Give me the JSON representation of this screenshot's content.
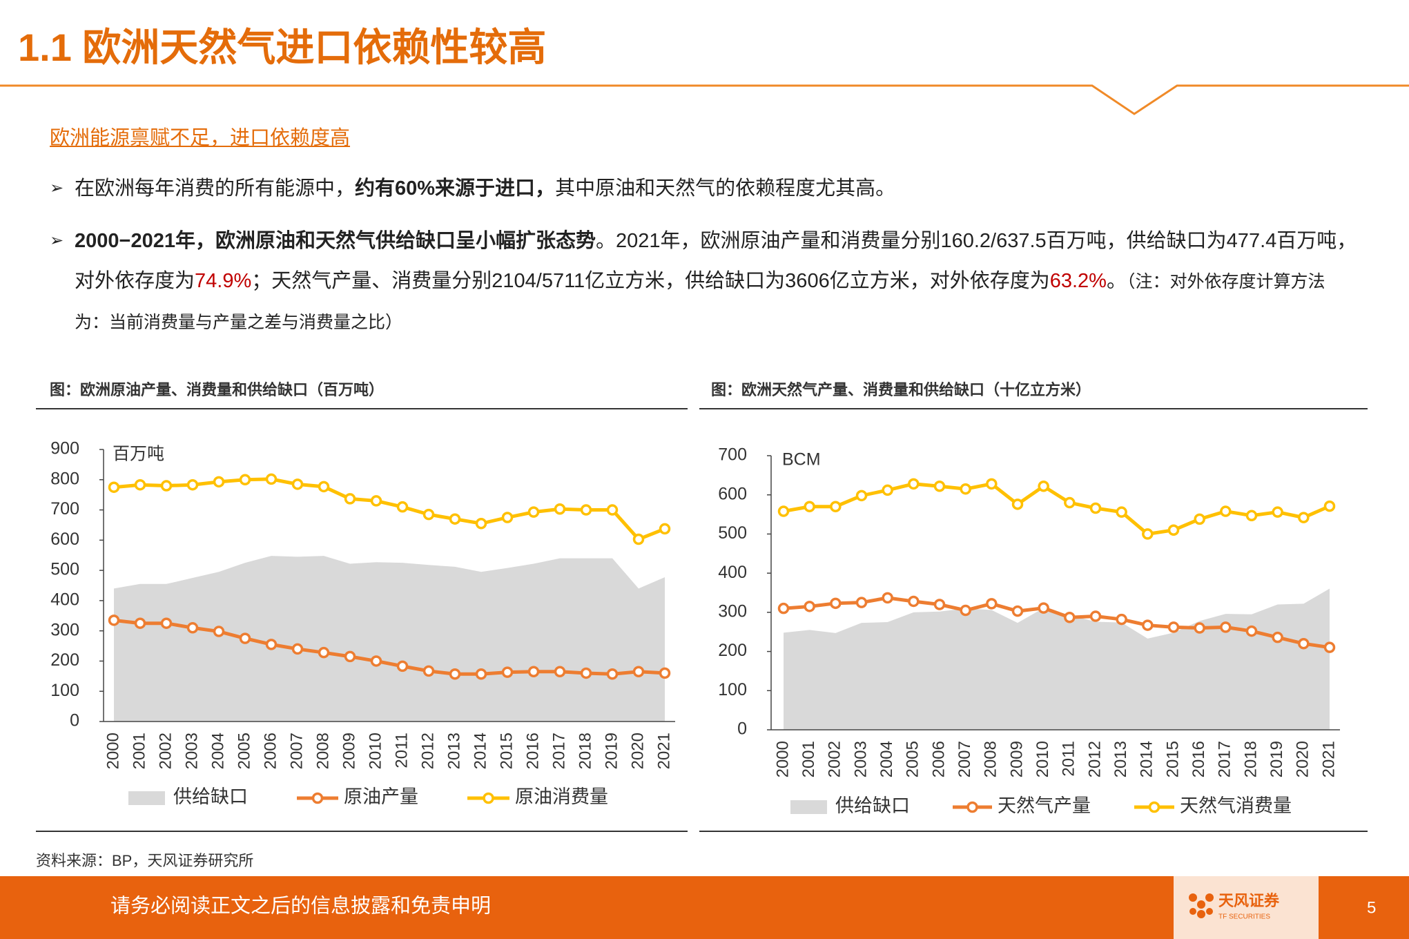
{
  "header": {
    "title": "1.1 欧洲天然气进口依赖性较高"
  },
  "subtitle": "欧洲能源禀赋不足，进口依赖度高",
  "bullets": [
    [
      {
        "text": "在欧洲每年消费的所有能源中，"
      },
      {
        "text": "约有60%来源于进口，",
        "bold": true
      },
      {
        "text": "其中原油和天然气的依赖程度尤其高。"
      }
    ],
    [
      {
        "text": "2000−2021年，欧洲原油和天然气供给缺口呈小幅扩张态势",
        "bold": true
      },
      {
        "text": "。2021年，欧洲原油产量和消费量分别160.2/637.5百万吨，供给缺口为477.4百万吨，对外依存度为"
      },
      {
        "text": "74.9%",
        "color": "#c00000"
      },
      {
        "text": "；天然气产量、消费量分别2104/5711亿立方米，供给缺口为3606亿立方米，对外依存度为"
      },
      {
        "text": "63.2%",
        "color": "#c00000"
      },
      {
        "text": "。"
      },
      {
        "text": "（注：对外依存度计算方法为：当前消费量与产量之差与消费量之比）",
        "small": true
      }
    ]
  ],
  "chart_data": [
    {
      "type": "line",
      "title": "图：欧洲原油产量、消费量和供给缺口（百万吨）",
      "unit_label": "百万吨",
      "categories": [
        "2000",
        "2001",
        "2002",
        "2003",
        "2004",
        "2005",
        "2006",
        "2007",
        "2008",
        "2009",
        "2010",
        "2011",
        "2012",
        "2013",
        "2014",
        "2015",
        "2016",
        "2017",
        "2018",
        "2019",
        "2020",
        "2021"
      ],
      "ylim": [
        0,
        900
      ],
      "yticks": [
        0,
        100,
        200,
        300,
        400,
        500,
        600,
        700,
        800,
        900
      ],
      "grid": false,
      "series": [
        {
          "name": "供给缺口",
          "kind": "area",
          "color": "#d9d9d9",
          "values": [
            440,
            455,
            455,
            475,
            495,
            525,
            548,
            545,
            548,
            522,
            527,
            525,
            518,
            512,
            495,
            508,
            522,
            540,
            540,
            540,
            440,
            477.4
          ]
        },
        {
          "name": "原油产量",
          "kind": "line",
          "color": "#ed7d31",
          "values": [
            335,
            325,
            325,
            310,
            298,
            275,
            255,
            240,
            228,
            215,
            200,
            183,
            167,
            157,
            157,
            163,
            165,
            165,
            160,
            157,
            165,
            160.2
          ]
        },
        {
          "name": "原油消费量",
          "kind": "line",
          "color": "#ffc000",
          "values": [
            775,
            783,
            780,
            783,
            793,
            800,
            802,
            785,
            777,
            737,
            730,
            710,
            685,
            670,
            655,
            675,
            693,
            703,
            700,
            700,
            603,
            637.5
          ]
        }
      ]
    },
    {
      "type": "line",
      "title": "图：欧洲天然气产量、消费量和供给缺口（十亿立方米）",
      "unit_label": "BCM",
      "categories": [
        "2000",
        "2001",
        "2002",
        "2003",
        "2004",
        "2005",
        "2006",
        "2007",
        "2008",
        "2009",
        "2010",
        "2011",
        "2012",
        "2013",
        "2014",
        "2015",
        "2016",
        "2017",
        "2018",
        "2019",
        "2020",
        "2021"
      ],
      "ylim": [
        0,
        700
      ],
      "yticks": [
        0,
        100,
        200,
        300,
        400,
        500,
        600,
        700
      ],
      "grid": false,
      "series": [
        {
          "name": "供给缺口",
          "kind": "area",
          "color": "#d9d9d9",
          "values": [
            248,
            255,
            247,
            273,
            275,
            300,
            302,
            310,
            306,
            273,
            311,
            293,
            276,
            274,
            233,
            248,
            278,
            296,
            295,
            320,
            322,
            360.6
          ]
        },
        {
          "name": "天然气产量",
          "kind": "line",
          "color": "#ed7d31",
          "values": [
            310,
            315,
            323,
            325,
            337,
            328,
            320,
            305,
            322,
            303,
            311,
            287,
            290,
            282,
            267,
            262,
            260,
            262,
            252,
            236,
            220,
            210.4
          ]
        },
        {
          "name": "天然气消费量",
          "kind": "line",
          "color": "#ffc000",
          "values": [
            558,
            570,
            570,
            598,
            612,
            628,
            622,
            615,
            628,
            576,
            622,
            580,
            566,
            556,
            500,
            510,
            538,
            558,
            547,
            556,
            542,
            571.1
          ]
        }
      ]
    }
  ],
  "source": "资料来源：BP，天风证券研究所",
  "footer": {
    "disclaimer": "请务必阅读正文之后的信息披露和免责申明",
    "logo": "天风证券",
    "logo_sub": "TF SECURITIES",
    "page": 5
  }
}
